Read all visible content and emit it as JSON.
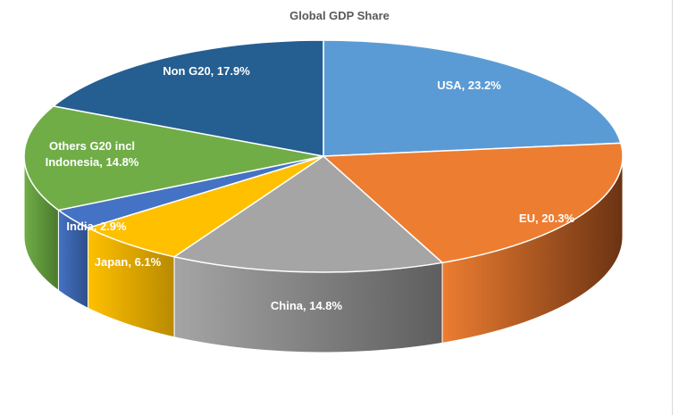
{
  "chart_data": {
    "type": "pie",
    "title": "Global GDP Share",
    "style": "3d",
    "slices": [
      {
        "name": "USA",
        "value": 23.2,
        "label": "USA, 23.2%",
        "color": "#5b9bd5",
        "side_color": "#3d6e9c"
      },
      {
        "name": "EU",
        "value": 20.3,
        "label": "EU, 20.3%",
        "color": "#ed7d31",
        "side_color": "#6b3312"
      },
      {
        "name": "China",
        "value": 14.8,
        "label": "China, 14.8%",
        "color": "#a5a5a5",
        "side_color": "#5e5e5e"
      },
      {
        "name": "Japan",
        "value": 6.1,
        "label": "Japan, 6.1%",
        "color": "#ffc000",
        "side_color": "#b88a00"
      },
      {
        "name": "India",
        "value": 2.9,
        "label": "India, 2.9%",
        "color": "#4472c4",
        "side_color": "#2e4f8a"
      },
      {
        "name": "Others G20 incl Indonesia",
        "value": 14.8,
        "label_lines": [
          "Others G20 incl",
          "Indonesia, 14.8%"
        ],
        "color": "#70ad47",
        "side_color": "#4a7a2c"
      },
      {
        "name": "Non G20",
        "value": 17.9,
        "label": "Non G20, 17.9%",
        "color": "#255e91",
        "side_color": "#183f63"
      }
    ]
  }
}
